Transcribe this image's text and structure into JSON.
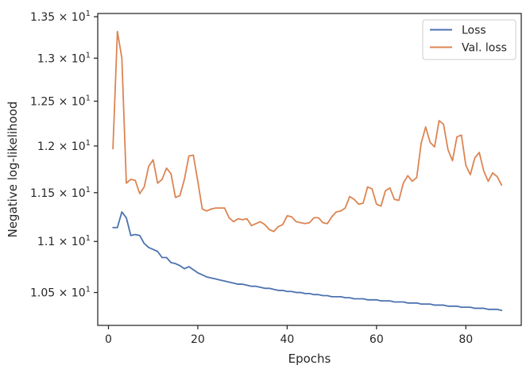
{
  "chart_data": {
    "type": "line",
    "xlabel": "Epochs",
    "ylabel": "Negative log-likelihood",
    "xlim": [
      -2.4,
      92.4
    ],
    "ylim": [
      10.19,
      13.54
    ],
    "yscale": "log",
    "grid": false,
    "legend_position": "top-right",
    "x_ticks": [
      0,
      20,
      40,
      60,
      80
    ],
    "x_tick_labels": [
      "0",
      "20",
      "40",
      "60",
      "80"
    ],
    "y_ticks": [
      10.5,
      11.0,
      11.5,
      12.0,
      12.5,
      13.0,
      13.5
    ],
    "y_tick_labels": [
      {
        "mantissa": "1.05",
        "exp": "1"
      },
      {
        "mantissa": "1.1",
        "exp": "1"
      },
      {
        "mantissa": "1.15",
        "exp": "1"
      },
      {
        "mantissa": "1.2",
        "exp": "1"
      },
      {
        "mantissa": "1.25",
        "exp": "1"
      },
      {
        "mantissa": "1.3",
        "exp": "1"
      },
      {
        "mantissa": "1.35",
        "exp": "1"
      }
    ],
    "series": [
      {
        "name": "Loss",
        "color": "#4c72b0",
        "x": [
          1,
          2,
          3,
          4,
          5,
          6,
          7,
          8,
          9,
          10,
          11,
          12,
          13,
          14,
          15,
          16,
          17,
          18,
          19,
          20,
          21,
          22,
          23,
          24,
          25,
          26,
          27,
          28,
          29,
          30,
          31,
          32,
          33,
          34,
          35,
          36,
          37,
          38,
          39,
          40,
          41,
          42,
          43,
          44,
          45,
          46,
          47,
          48,
          49,
          50,
          51,
          52,
          53,
          54,
          55,
          56,
          57,
          58,
          59,
          60,
          61,
          62,
          63,
          64,
          65,
          66,
          67,
          68,
          69,
          70,
          71,
          72,
          73,
          74,
          75,
          76,
          77,
          78,
          79,
          80,
          81,
          82,
          83,
          84,
          85,
          86,
          87,
          88
        ],
        "y": [
          11.14,
          11.14,
          11.3,
          11.24,
          11.06,
          11.07,
          11.06,
          10.98,
          10.94,
          10.92,
          10.9,
          10.84,
          10.84,
          10.79,
          10.78,
          10.76,
          10.73,
          10.75,
          10.72,
          10.69,
          10.67,
          10.65,
          10.64,
          10.63,
          10.62,
          10.61,
          10.6,
          10.59,
          10.58,
          10.58,
          10.57,
          10.56,
          10.56,
          10.55,
          10.54,
          10.54,
          10.53,
          10.52,
          10.52,
          10.51,
          10.51,
          10.5,
          10.5,
          10.49,
          10.49,
          10.48,
          10.48,
          10.47,
          10.47,
          10.46,
          10.46,
          10.46,
          10.45,
          10.45,
          10.44,
          10.44,
          10.44,
          10.43,
          10.43,
          10.43,
          10.42,
          10.42,
          10.42,
          10.41,
          10.41,
          10.41,
          10.4,
          10.4,
          10.4,
          10.39,
          10.39,
          10.39,
          10.38,
          10.38,
          10.38,
          10.37,
          10.37,
          10.37,
          10.36,
          10.36,
          10.36,
          10.35,
          10.35,
          10.35,
          10.34,
          10.34,
          10.34,
          10.33
        ]
      },
      {
        "name": "Val. loss",
        "color": "#dd8452",
        "x": [
          1,
          2,
          3,
          4,
          5,
          6,
          7,
          8,
          9,
          10,
          11,
          12,
          13,
          14,
          15,
          16,
          17,
          18,
          19,
          20,
          21,
          22,
          23,
          24,
          25,
          26,
          27,
          28,
          29,
          30,
          31,
          32,
          33,
          34,
          35,
          36,
          37,
          38,
          39,
          40,
          41,
          42,
          43,
          44,
          45,
          46,
          47,
          48,
          49,
          50,
          51,
          52,
          53,
          54,
          55,
          56,
          57,
          58,
          59,
          60,
          61,
          62,
          63,
          64,
          65,
          66,
          67,
          68,
          69,
          70,
          71,
          72,
          73,
          74,
          75,
          76,
          77,
          78,
          79,
          80,
          81,
          82,
          83,
          84,
          85,
          86,
          87,
          88
        ],
        "y": [
          11.97,
          13.32,
          13.0,
          11.6,
          11.64,
          11.63,
          11.49,
          11.56,
          11.78,
          11.85,
          11.6,
          11.64,
          11.76,
          11.7,
          11.45,
          11.47,
          11.64,
          11.89,
          11.9,
          11.62,
          11.33,
          11.31,
          11.33,
          11.34,
          11.34,
          11.34,
          11.24,
          11.2,
          11.23,
          11.22,
          11.23,
          11.16,
          11.18,
          11.2,
          11.17,
          11.12,
          11.1,
          11.15,
          11.17,
          11.26,
          11.25,
          11.2,
          11.19,
          11.18,
          11.19,
          11.24,
          11.24,
          11.19,
          11.18,
          11.25,
          11.3,
          11.31,
          11.34,
          11.46,
          11.43,
          11.38,
          11.39,
          11.56,
          11.54,
          11.38,
          11.36,
          11.52,
          11.55,
          11.43,
          11.42,
          11.6,
          11.68,
          11.62,
          11.66,
          12.03,
          12.21,
          12.04,
          11.99,
          12.28,
          12.24,
          11.96,
          11.84,
          12.1,
          12.12,
          11.79,
          11.69,
          11.87,
          11.93,
          11.73,
          11.62,
          11.71,
          11.67,
          11.58
        ]
      }
    ]
  }
}
